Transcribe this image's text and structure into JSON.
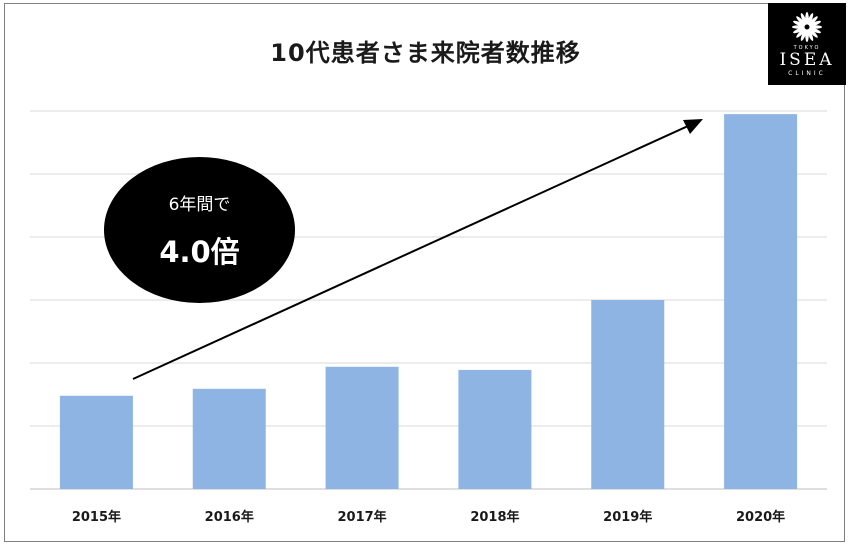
{
  "chart_data": {
    "type": "bar",
    "title": "10代患者さま来院者数推移",
    "categories": [
      "2015年",
      "2016年",
      "2017年",
      "2018年",
      "2019年",
      "2020年"
    ],
    "values": [
      1.48,
      1.59,
      1.94,
      1.89,
      3.0,
      5.95
    ],
    "ylim": [
      0,
      6
    ],
    "grid": true,
    "bar_color": "#8eb4e3",
    "annotation": {
      "line1": "6年間で",
      "line2": "4.0倍"
    }
  },
  "logo": {
    "small_top": "TOKYO",
    "name": "ISEA",
    "small_bottom": "CLINIC"
  }
}
